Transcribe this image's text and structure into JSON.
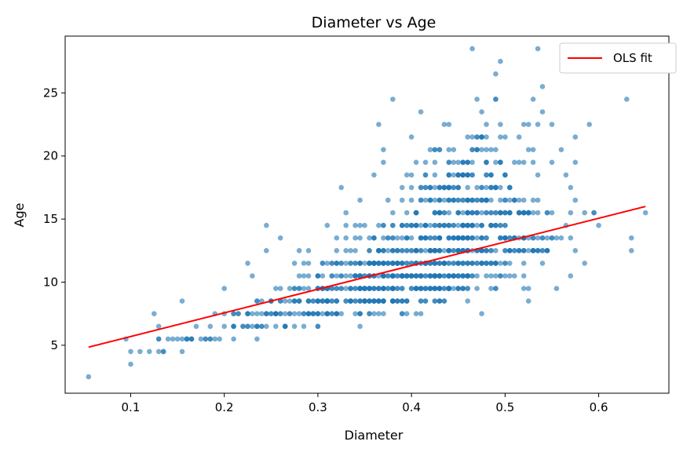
{
  "chart_data": {
    "type": "scatter",
    "title": "Diameter vs Age",
    "xlabel": "Diameter",
    "ylabel": "Age",
    "xlim": [
      0.03,
      0.675
    ],
    "ylim": [
      1.2,
      29.5
    ],
    "xticks": [
      0.1,
      0.2,
      0.3,
      0.4,
      0.5,
      0.6
    ],
    "xtick_labels": [
      "0.1",
      "0.2",
      "0.3",
      "0.4",
      "0.5",
      "0.6"
    ],
    "yticks": [
      5,
      10,
      15,
      20,
      25
    ],
    "ytick_labels": [
      "5",
      "10",
      "15",
      "20",
      "25"
    ],
    "grid": false,
    "legend": {
      "position": "top-right",
      "entries": [
        "OLS fit"
      ]
    },
    "series": [
      {
        "kind": "scatter",
        "color": "#1f77b4",
        "alpha": 0.6,
        "density": [
          {
            "age": 2.5,
            "range": [
              0.055,
              0.055
            ],
            "count": 1
          },
          {
            "age": 3.5,
            "range": [
              0.1,
              0.1
            ],
            "count": 1
          },
          {
            "age": 4.5,
            "range": [
              0.1,
              0.155
            ],
            "count": 7
          },
          {
            "age": 5.5,
            "range": [
              0.095,
              0.235
            ],
            "count": 22
          },
          {
            "age": 6.5,
            "range": [
              0.13,
              0.345
            ],
            "count": 28
          },
          {
            "age": 7.5,
            "range": [
              0.125,
              0.475
            ],
            "count": 70
          },
          {
            "age": 8.5,
            "range": [
              0.155,
              0.525
            ],
            "count": 110
          },
          {
            "age": 9.5,
            "range": [
              0.2,
              0.555
            ],
            "count": 130
          },
          {
            "age": 10.5,
            "range": [
              0.23,
              0.57
            ],
            "count": 140
          },
          {
            "age": 11.5,
            "range": [
              0.225,
              0.585
            ],
            "count": 140
          },
          {
            "age": 12.5,
            "range": [
              0.245,
              0.635
            ],
            "count": 130
          },
          {
            "age": 13.5,
            "range": [
              0.26,
              0.635
            ],
            "count": 105
          },
          {
            "age": 14.5,
            "range": [
              0.245,
              0.6
            ],
            "count": 80
          },
          {
            "age": 15.5,
            "range": [
              0.33,
              0.65
            ],
            "count": 75
          },
          {
            "age": 16.5,
            "range": [
              0.345,
              0.575
            ],
            "count": 55
          },
          {
            "age": 17.5,
            "range": [
              0.325,
              0.57
            ],
            "count": 45
          },
          {
            "age": 18.5,
            "range": [
              0.36,
              0.565
            ],
            "count": 35
          },
          {
            "age": 19.5,
            "range": [
              0.37,
              0.575
            ],
            "count": 28
          },
          {
            "age": 20.5,
            "range": [
              0.37,
              0.56
            ],
            "count": 20
          },
          {
            "age": 21.5,
            "range": [
              0.4,
              0.575
            ],
            "count": 14
          },
          {
            "age": 22.5,
            "range": [
              0.365,
              0.59
            ],
            "count": 10
          },
          {
            "age": 23.5,
            "range": [
              0.41,
              0.54
            ],
            "count": 3
          },
          {
            "age": 24.5,
            "range": [
              0.38,
              0.63
            ],
            "count": 6
          },
          {
            "age": 25.5,
            "range": [
              0.54,
              0.54
            ],
            "count": 1
          },
          {
            "age": 26.5,
            "range": [
              0.49,
              0.49
            ],
            "count": 1
          },
          {
            "age": 27.5,
            "range": [
              0.495,
              0.495
            ],
            "count": 1
          },
          {
            "age": 28.5,
            "range": [
              0.465,
              0.535
            ],
            "count": 2
          }
        ]
      },
      {
        "kind": "line",
        "name": "OLS fit",
        "color": "#ff0000",
        "x": [
          0.055,
          0.65
        ],
        "y": [
          4.85,
          16.0
        ]
      }
    ]
  }
}
